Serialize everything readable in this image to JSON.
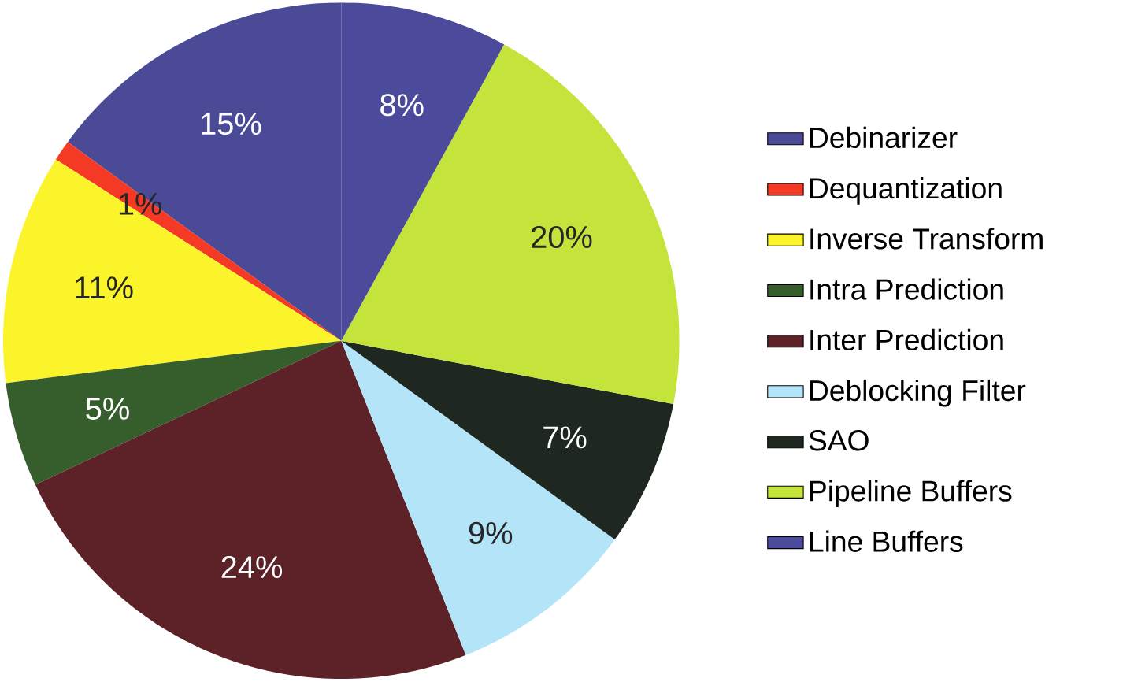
{
  "chart_data": {
    "type": "pie",
    "categories": [
      "Debinarizer",
      "Dequantization",
      "Inverse Transform",
      "Intra Prediction",
      "Inter Prediction",
      "Deblocking Filter",
      "SAO",
      "Pipeline Buffers",
      "Line Buffers"
    ],
    "values": [
      15,
      1,
      11,
      5,
      24,
      9,
      7,
      20,
      8
    ],
    "value_labels": [
      "15%",
      "1%",
      "11%",
      "5%",
      "24%",
      "9%",
      "7%",
      "20%",
      "8%"
    ],
    "colors": [
      "#4a4a96",
      "#f43a24",
      "#fcf42a",
      "#355e2c",
      "#5c2228",
      "#b4e4f8",
      "#1e2820",
      "#c4e43c",
      "#4c4a9a"
    ],
    "legend": "right"
  }
}
